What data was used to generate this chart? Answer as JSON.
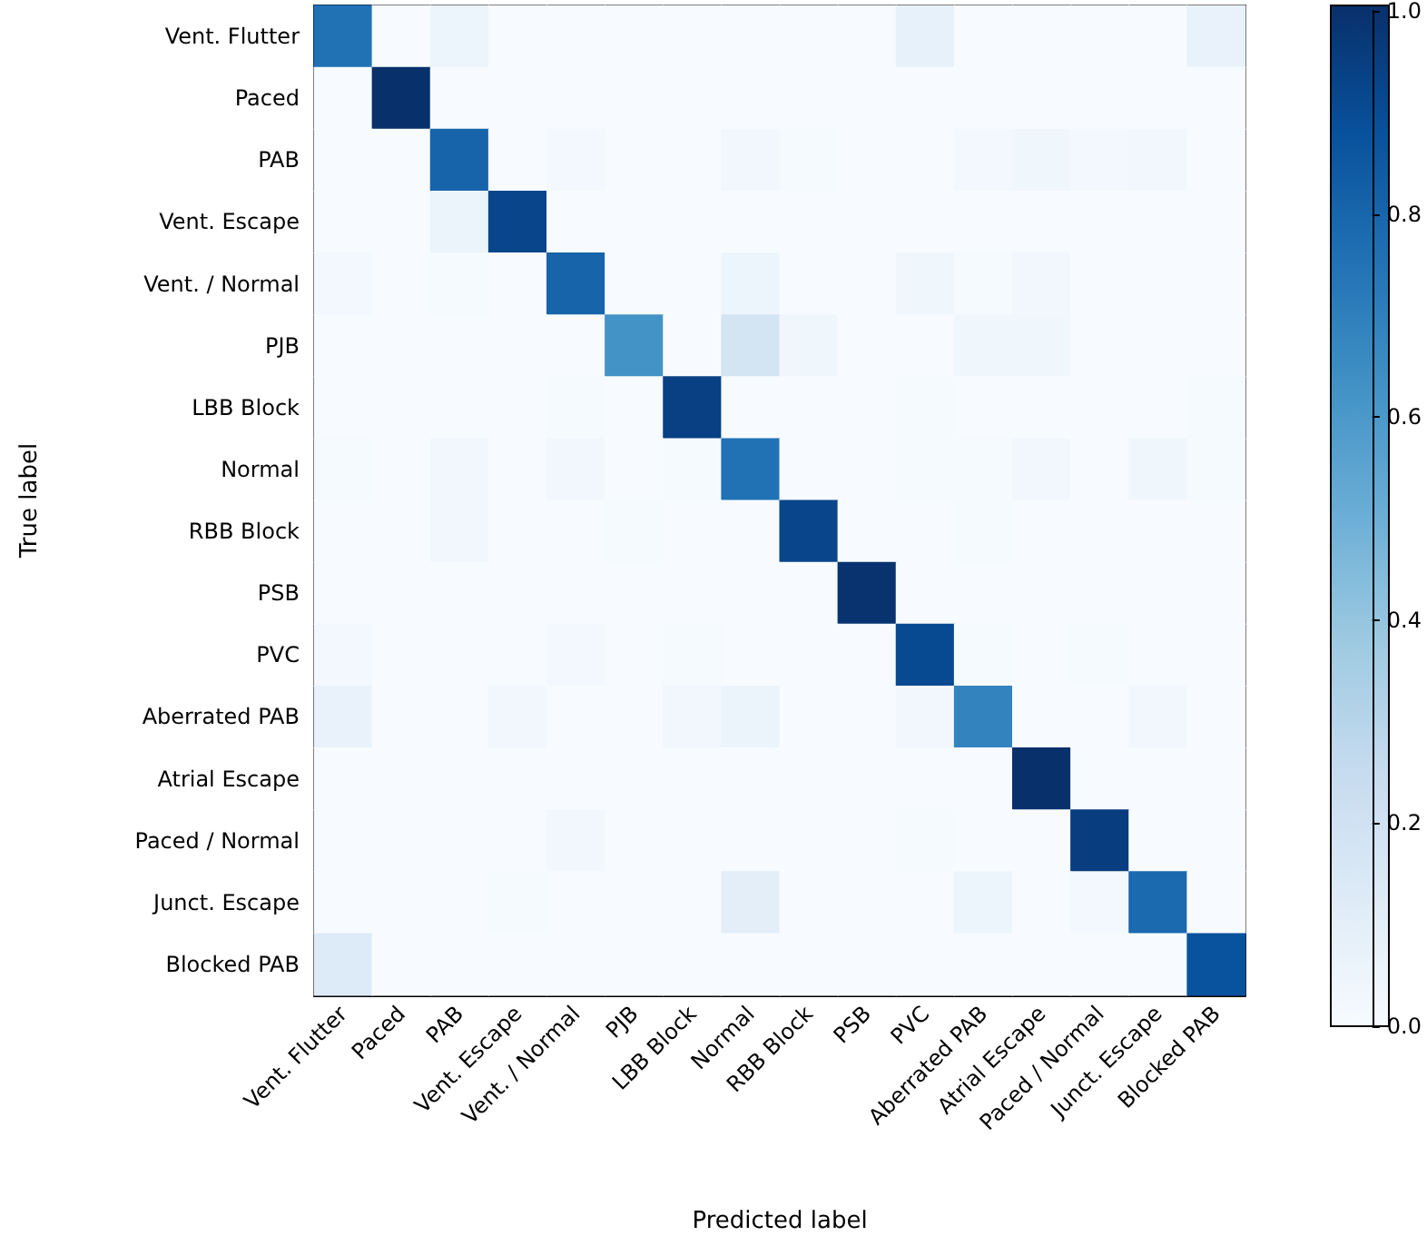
{
  "chart_data": {
    "type": "heatmap",
    "xlabel": "Predicted label",
    "ylabel": "True label",
    "categories": [
      "Vent. Flutter",
      "Paced",
      "PAB",
      "Vent. Escape",
      "Vent. / Normal",
      "PJB",
      "LBB Block",
      "Normal",
      "RBB Block",
      "PSB",
      "PVC",
      "Aberrated PAB",
      "Atrial Escape",
      "Paced / Normal",
      "Junct. Escape",
      "Blocked PAB"
    ],
    "y_categories": [
      "Vent. Flutter",
      "Paced",
      "PAB",
      "Vent. Escape",
      "Vent. / Normal",
      "PJB",
      "LBB Block",
      "Normal",
      "RBB Block",
      "PSB",
      "PVC",
      "Aberrated PAB",
      "Atrial Escape",
      "Paced / Normal",
      "Junct. Escape",
      "Blocked PAB"
    ],
    "cells": [
      [
        0.75,
        0,
        0.05,
        0,
        0,
        0,
        0,
        0,
        0,
        0,
        0.08,
        0,
        0,
        0,
        0,
        0.07
      ],
      [
        0,
        1.0,
        0,
        0,
        0,
        0,
        0,
        0,
        0,
        0,
        0,
        0,
        0,
        0,
        0,
        0
      ],
      [
        0,
        0,
        0.8,
        0,
        0.02,
        0,
        0,
        0.03,
        0.01,
        0,
        0,
        0.02,
        0.04,
        0.02,
        0.03,
        0
      ],
      [
        0,
        0,
        0.06,
        0.92,
        0,
        0,
        0,
        0,
        0,
        0,
        0,
        0,
        0,
        0,
        0,
        0
      ],
      [
        0.02,
        0,
        0.01,
        0,
        0.8,
        0,
        0,
        0.05,
        0,
        0,
        0.04,
        0.01,
        0.03,
        0,
        0,
        0
      ],
      [
        0,
        0,
        0,
        0,
        0,
        0.62,
        0,
        0.18,
        0.04,
        0,
        0,
        0.04,
        0.04,
        0,
        0,
        0
      ],
      [
        0,
        0,
        0,
        0,
        0.01,
        0,
        0.94,
        0,
        0,
        0,
        0.01,
        0,
        0,
        0,
        0,
        0.01
      ],
      [
        0.01,
        0,
        0.03,
        0,
        0.03,
        0,
        0.01,
        0.75,
        0,
        0,
        0.01,
        0.01,
        0.03,
        0,
        0.04,
        0.01
      ],
      [
        0,
        0,
        0.03,
        0,
        0,
        0.01,
        0,
        0,
        0.92,
        0,
        0,
        0.01,
        0,
        0,
        0,
        0
      ],
      [
        0,
        0,
        0,
        0,
        0,
        0,
        0,
        0,
        0,
        0.99,
        0,
        0,
        0,
        0,
        0,
        0
      ],
      [
        0.02,
        0,
        0,
        0,
        0.02,
        0,
        0.01,
        0,
        0,
        0,
        0.9,
        0.01,
        0,
        0.01,
        0,
        0
      ],
      [
        0.07,
        0,
        0,
        0.03,
        0,
        0,
        0.03,
        0.06,
        0,
        0,
        0.03,
        0.68,
        0,
        0,
        0.03,
        0
      ],
      [
        0,
        0,
        0,
        0,
        0,
        0,
        0,
        0,
        0,
        0,
        0,
        0,
        1.0,
        0,
        0,
        0
      ],
      [
        0,
        0,
        0,
        0,
        0.03,
        0,
        0,
        0,
        0,
        0,
        0.01,
        0,
        0,
        0.95,
        0,
        0
      ],
      [
        0,
        0,
        0,
        0.01,
        0,
        0,
        0,
        0.1,
        0,
        0,
        0,
        0.05,
        0,
        0.02,
        0.78,
        0
      ],
      [
        0.13,
        0,
        0,
        0,
        0,
        0,
        0,
        0,
        0,
        0,
        0,
        0,
        0,
        0,
        0,
        0.87
      ]
    ],
    "clim": [
      0,
      1
    ],
    "cticks": [
      {
        "value": 0,
        "label": "0.0"
      },
      {
        "value": 0.2,
        "label": "0.2"
      },
      {
        "value": 0.4,
        "label": "0.4"
      },
      {
        "value": 0.6,
        "label": "0.6"
      },
      {
        "value": 0.8,
        "label": "0.8"
      },
      {
        "value": 1,
        "label": "1.0"
      }
    ]
  }
}
